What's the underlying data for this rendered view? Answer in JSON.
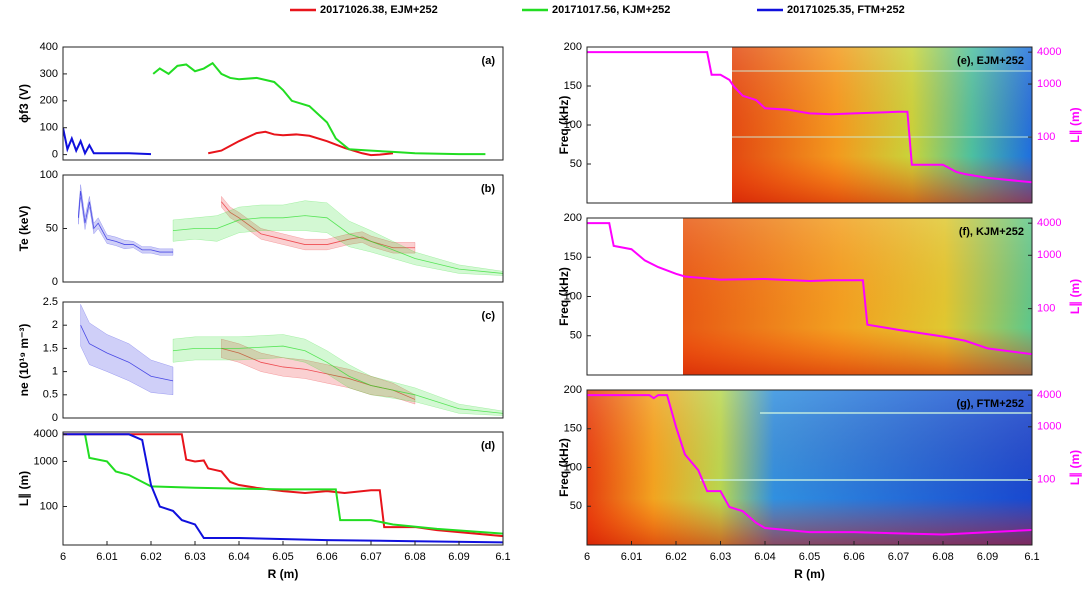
{
  "chart_data": [
    {
      "type": "line",
      "label": "(a)",
      "ylabel": "ϕf3 (V)",
      "xlim": [
        6,
        6.1
      ],
      "ylim": [
        -20,
        400
      ],
      "yticks": [
        0,
        100,
        200,
        300,
        400
      ],
      "series": [
        {
          "name": "20171026.38, EJM+252",
          "color": "#e8141b",
          "x": [
            6.033,
            6.036,
            6.04,
            6.044,
            6.046,
            6.048,
            6.05,
            6.053,
            6.056,
            6.06,
            6.064,
            6.068,
            6.07,
            6.072,
            6.075
          ],
          "values": [
            5,
            15,
            50,
            80,
            85,
            75,
            72,
            75,
            70,
            50,
            25,
            5,
            -2,
            0,
            5
          ]
        },
        {
          "name": "20171017.56, KJM+252",
          "color": "#22dd22",
          "x": [
            6.0205,
            6.022,
            6.024,
            6.026,
            6.028,
            6.03,
            6.032,
            6.034,
            6.036,
            6.038,
            6.04,
            6.044,
            6.048,
            6.05,
            6.052,
            6.056,
            6.06,
            6.062,
            6.065,
            6.07,
            6.075,
            6.08,
            6.09,
            6.096
          ],
          "values": [
            300,
            320,
            300,
            330,
            335,
            310,
            320,
            340,
            300,
            285,
            280,
            285,
            270,
            240,
            200,
            180,
            120,
            60,
            20,
            15,
            10,
            5,
            2,
            2
          ]
        },
        {
          "name": "20171025.35, FTM+252",
          "color": "#1010dd",
          "x": [
            6,
            6.001,
            6.002,
            6.003,
            6.004,
            6.005,
            6.006,
            6.007,
            6.01,
            6.015,
            6.02
          ],
          "values": [
            100,
            20,
            60,
            15,
            50,
            5,
            35,
            5,
            5,
            5,
            2
          ]
        }
      ]
    },
    {
      "type": "line",
      "label": "(b)",
      "ylabel": "Te (keV)",
      "xlim": [
        6,
        6.1
      ],
      "ylim": [
        0,
        100
      ],
      "yticks": [
        0,
        50,
        100
      ],
      "series": [
        {
          "color": "#e8141b",
          "x": [
            6.036,
            6.038,
            6.04,
            6.045,
            6.05,
            6.055,
            6.06,
            6.065,
            6.068,
            6.07,
            6.075,
            6.08
          ],
          "values": [
            75,
            65,
            60,
            45,
            40,
            35,
            35,
            40,
            42,
            38,
            32,
            32
          ],
          "error": [
            5,
            5,
            5,
            5,
            5,
            5,
            5,
            5,
            5,
            5,
            5,
            5
          ]
        },
        {
          "color": "#22dd22",
          "x": [
            6.025,
            6.03,
            6.035,
            6.04,
            6.045,
            6.05,
            6.055,
            6.06,
            6.065,
            6.07,
            6.075,
            6.08,
            6.09,
            6.1
          ],
          "values": [
            48,
            50,
            50,
            58,
            60,
            60,
            62,
            60,
            45,
            38,
            30,
            22,
            12,
            8
          ],
          "error": [
            10,
            10,
            12,
            12,
            12,
            12,
            14,
            14,
            12,
            10,
            8,
            6,
            4,
            2
          ]
        },
        {
          "color": "#1010dd",
          "x": [
            6.0035,
            6.004,
            6.005,
            6.006,
            6.007,
            6.008,
            6.01,
            6.012,
            6.014,
            6.016,
            6.018,
            6.02,
            6.022,
            6.025
          ],
          "values": [
            60,
            85,
            55,
            75,
            50,
            55,
            40,
            38,
            35,
            35,
            30,
            30,
            28,
            28
          ],
          "error": [
            6,
            6,
            6,
            5,
            5,
            5,
            4,
            4,
            4,
            3,
            3,
            3,
            3,
            3
          ]
        }
      ]
    },
    {
      "type": "line",
      "label": "(c)",
      "ylabel": "ne (10¹⁹ m⁻³)",
      "xlim": [
        6,
        6.1
      ],
      "ylim": [
        0,
        2.5
      ],
      "yticks": [
        0,
        0.5,
        1,
        1.5,
        2,
        2.5
      ],
      "series": [
        {
          "color": "#e8141b",
          "x": [
            6.036,
            6.04,
            6.045,
            6.05,
            6.055,
            6.06,
            6.065,
            6.07,
            6.075,
            6.08
          ],
          "values": [
            1.5,
            1.4,
            1.2,
            1.1,
            1.05,
            0.95,
            0.85,
            0.7,
            0.6,
            0.4
          ],
          "error": [
            0.2,
            0.2,
            0.2,
            0.2,
            0.2,
            0.2,
            0.2,
            0.2,
            0.15,
            0.1
          ]
        },
        {
          "color": "#22dd22",
          "x": [
            6.025,
            6.03,
            6.04,
            6.05,
            6.055,
            6.06,
            6.065,
            6.07,
            6.08,
            6.09,
            6.1
          ],
          "values": [
            1.45,
            1.5,
            1.5,
            1.55,
            1.45,
            1.2,
            0.9,
            0.7,
            0.5,
            0.2,
            0.1
          ],
          "error": [
            0.25,
            0.25,
            0.25,
            0.25,
            0.25,
            0.25,
            0.25,
            0.2,
            0.15,
            0.1,
            0.05
          ]
        },
        {
          "color": "#1010dd",
          "x": [
            6.004,
            6.006,
            6.01,
            6.015,
            6.02,
            6.025
          ],
          "values": [
            2.0,
            1.6,
            1.4,
            1.2,
            0.9,
            0.8
          ],
          "error": [
            0.45,
            0.45,
            0.4,
            0.4,
            0.35,
            0.3
          ]
        }
      ]
    },
    {
      "type": "line",
      "label": "(d)",
      "ylabel": "L∥ (m)",
      "xlabel": "R (m)",
      "xlim": [
        6,
        6.1
      ],
      "xticks": [
        6,
        6.01,
        6.02,
        6.03,
        6.04,
        6.05,
        6.06,
        6.07,
        6.08,
        6.09,
        6.1
      ],
      "log_y": true,
      "ylim": [
        14,
        4500
      ],
      "yticks": [
        100,
        1000,
        4000
      ],
      "series": [
        {
          "color": "#e8141b",
          "x": [
            6,
            6.027,
            6.028,
            6.03,
            6.032,
            6.033,
            6.036,
            6.038,
            6.04,
            6.044,
            6.05,
            6.055,
            6.06,
            6.064,
            6.07,
            6.072,
            6.073,
            6.08,
            6.085,
            6.1
          ],
          "values": [
            4000,
            4000,
            1100,
            1000,
            1050,
            700,
            600,
            350,
            300,
            260,
            220,
            200,
            220,
            200,
            230,
            230,
            35,
            35,
            30,
            22
          ]
        },
        {
          "color": "#22dd22",
          "x": [
            6.005,
            6.006,
            6.01,
            6.012,
            6.015,
            6.02,
            6.03,
            6.04,
            6.05,
            6.062,
            6.063,
            6.07,
            6.075,
            6.085,
            6.1
          ],
          "values": [
            4000,
            1200,
            1000,
            600,
            500,
            280,
            260,
            250,
            240,
            240,
            50,
            50,
            40,
            32,
            25
          ]
        },
        {
          "color": "#1010dd",
          "x": [
            6,
            6.015,
            6.018,
            6.02,
            6.022,
            6.025,
            6.027,
            6.03,
            6.032,
            6.04,
            6.06,
            6.08,
            6.1
          ],
          "values": [
            4000,
            4000,
            3000,
            300,
            100,
            80,
            50,
            40,
            20,
            20,
            18,
            17,
            16
          ]
        }
      ]
    },
    {
      "type": "line",
      "label": "(e), EJM+252",
      "ylabel": "Freq (kHz)",
      "y2label": "L∥ (m)",
      "xlim": [
        6,
        6.1
      ],
      "ylim": [
        0,
        200
      ],
      "yticks": [
        50,
        100,
        150,
        200
      ],
      "log_y2": true,
      "y2lim": [
        5.7,
        5000
      ],
      "y2ticks": [
        100,
        1000,
        4000
      ],
      "series": [
        {
          "color": "#ff00ff",
          "axis": "y2",
          "x": [
            6,
            6.027,
            6.028,
            6.03,
            6.032,
            6.033,
            6.035,
            6.038,
            6.04,
            6.045,
            6.05,
            6.055,
            6.06,
            6.07,
            6.072,
            6.073,
            6.08,
            6.083,
            6.085,
            6.09,
            6.1
          ],
          "values": [
            4000,
            4000,
            1500,
            1500,
            1200,
            900,
            600,
            500,
            350,
            330,
            280,
            270,
            280,
            300,
            300,
            30,
            30,
            22,
            20,
            17,
            14
          ]
        }
      ]
    },
    {
      "type": "line",
      "label": "(f), KJM+252",
      "ylabel": "Freq (kHz)",
      "y2label": "L∥ (m)",
      "xlim": [
        6,
        6.1
      ],
      "ylim": [
        0,
        200
      ],
      "yticks": [
        50,
        100,
        150,
        200
      ],
      "log_y2": true,
      "y2lim": [
        5.7,
        5000
      ],
      "y2ticks": [
        100,
        1000,
        4000
      ],
      "series": [
        {
          "color": "#ff00ff",
          "axis": "y2",
          "x": [
            6,
            6.005,
            6.006,
            6.01,
            6.013,
            6.016,
            6.02,
            6.022,
            6.03,
            6.04,
            6.05,
            6.055,
            6.062,
            6.063,
            6.07,
            6.08,
            6.085,
            6.09,
            6.1
          ],
          "values": [
            4000,
            4000,
            1500,
            1300,
            800,
            600,
            450,
            400,
            350,
            360,
            330,
            340,
            340,
            50,
            40,
            30,
            25,
            18,
            14
          ]
        }
      ]
    },
    {
      "type": "line",
      "label": "(g), FTM+252",
      "ylabel": "Freq (kHz)",
      "y2label": "L∥ (m)",
      "xlabel": "R (m)",
      "xlim": [
        6,
        6.1
      ],
      "xticks": [
        6,
        6.01,
        6.02,
        6.03,
        6.04,
        6.05,
        6.06,
        6.07,
        6.08,
        6.09,
        6.1
      ],
      "ylim": [
        0,
        200
      ],
      "yticks": [
        50,
        100,
        150,
        200
      ],
      "log_y2": true,
      "y2lim": [
        5.7,
        5000
      ],
      "y2ticks": [
        100,
        1000,
        4000
      ],
      "series": [
        {
          "color": "#ff00ff",
          "axis": "y2",
          "x": [
            6,
            6.014,
            6.015,
            6.016,
            6.018,
            6.02,
            6.022,
            6.025,
            6.027,
            6.03,
            6.032,
            6.035,
            6.038,
            6.04,
            6.05,
            6.06,
            6.08,
            6.1
          ],
          "values": [
            4000,
            4000,
            3500,
            4000,
            4000,
            1000,
            300,
            150,
            60,
            60,
            30,
            25,
            15,
            12,
            10,
            10,
            9,
            11
          ]
        }
      ]
    }
  ]
}
